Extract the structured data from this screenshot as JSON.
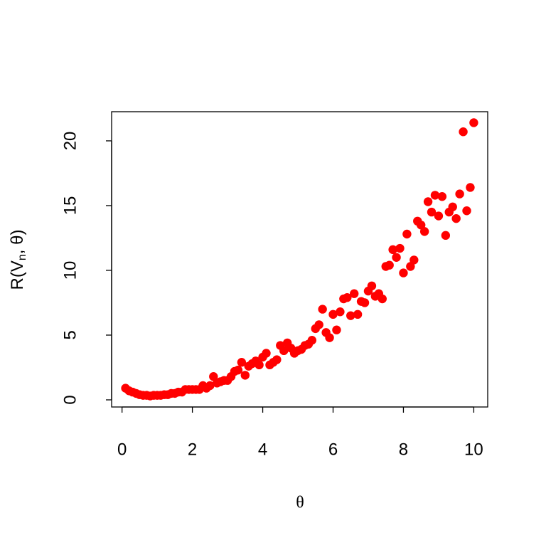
{
  "chart_data": {
    "type": "scatter",
    "xlabel": "θ",
    "ylabel": [
      "R(V",
      "n",
      ", θ)"
    ],
    "color": "#ff0000",
    "x": [
      0.1,
      0.2,
      0.3,
      0.4,
      0.5,
      0.6,
      0.7,
      0.8,
      0.9,
      1.0,
      1.1,
      1.2,
      1.3,
      1.4,
      1.5,
      1.6,
      1.7,
      1.8,
      1.9,
      2.0,
      2.1,
      2.2,
      2.3,
      2.4,
      2.5,
      2.6,
      2.7,
      2.8,
      2.9,
      3.0,
      3.1,
      3.2,
      3.3,
      3.4,
      3.5,
      3.6,
      3.7,
      3.8,
      3.9,
      4.0,
      4.1,
      4.2,
      4.3,
      4.4,
      4.5,
      4.6,
      4.7,
      4.8,
      4.9,
      5.0,
      5.1,
      5.2,
      5.3,
      5.4,
      5.5,
      5.6,
      5.7,
      5.8,
      5.9,
      6.0,
      6.1,
      6.2,
      6.3,
      6.4,
      6.5,
      6.6,
      6.7,
      6.8,
      6.9,
      7.0,
      7.1,
      7.2,
      7.3,
      7.4,
      7.5,
      7.6,
      7.7,
      7.8,
      7.9,
      8.0,
      8.1,
      8.2,
      8.3,
      8.4,
      8.5,
      8.6,
      8.7,
      8.8,
      8.9,
      9.0,
      9.1,
      9.2,
      9.3,
      9.4,
      9.5,
      9.6,
      9.7,
      9.8,
      9.9,
      10.0
    ],
    "values": [
      0.9,
      0.7,
      0.6,
      0.5,
      0.4,
      0.35,
      0.35,
      0.3,
      0.35,
      0.35,
      0.35,
      0.4,
      0.4,
      0.5,
      0.5,
      0.6,
      0.6,
      0.8,
      0.8,
      0.8,
      0.8,
      0.8,
      1.1,
      0.9,
      1.1,
      1.8,
      1.3,
      1.4,
      1.5,
      1.5,
      1.8,
      2.2,
      2.3,
      2.9,
      1.9,
      2.6,
      2.8,
      3.0,
      2.7,
      3.3,
      3.6,
      2.7,
      2.9,
      3.1,
      4.2,
      3.8,
      4.4,
      4.0,
      3.6,
      3.8,
      3.9,
      4.2,
      4.3,
      4.6,
      5.5,
      5.8,
      7.0,
      5.2,
      4.8,
      6.6,
      5.4,
      6.8,
      7.8,
      7.9,
      6.5,
      8.2,
      6.6,
      7.6,
      7.5,
      8.4,
      8.8,
      8.0,
      8.2,
      7.8,
      10.3,
      10.4,
      11.6,
      11.0,
      11.7,
      9.8,
      12.8,
      10.3,
      10.8,
      13.8,
      13.5,
      13.0,
      15.3,
      14.5,
      15.8,
      14.2,
      15.7,
      12.7,
      14.5,
      14.9,
      14.0,
      15.9,
      20.7,
      14.6,
      16.4,
      21.4
    ],
    "xlim": [
      -0.296,
      10.396
    ],
    "ylim": [
      -0.55,
      22.25
    ],
    "xticks": [
      0,
      2,
      4,
      6,
      8,
      10
    ],
    "yticks": [
      0,
      5,
      10,
      15,
      20
    ]
  }
}
